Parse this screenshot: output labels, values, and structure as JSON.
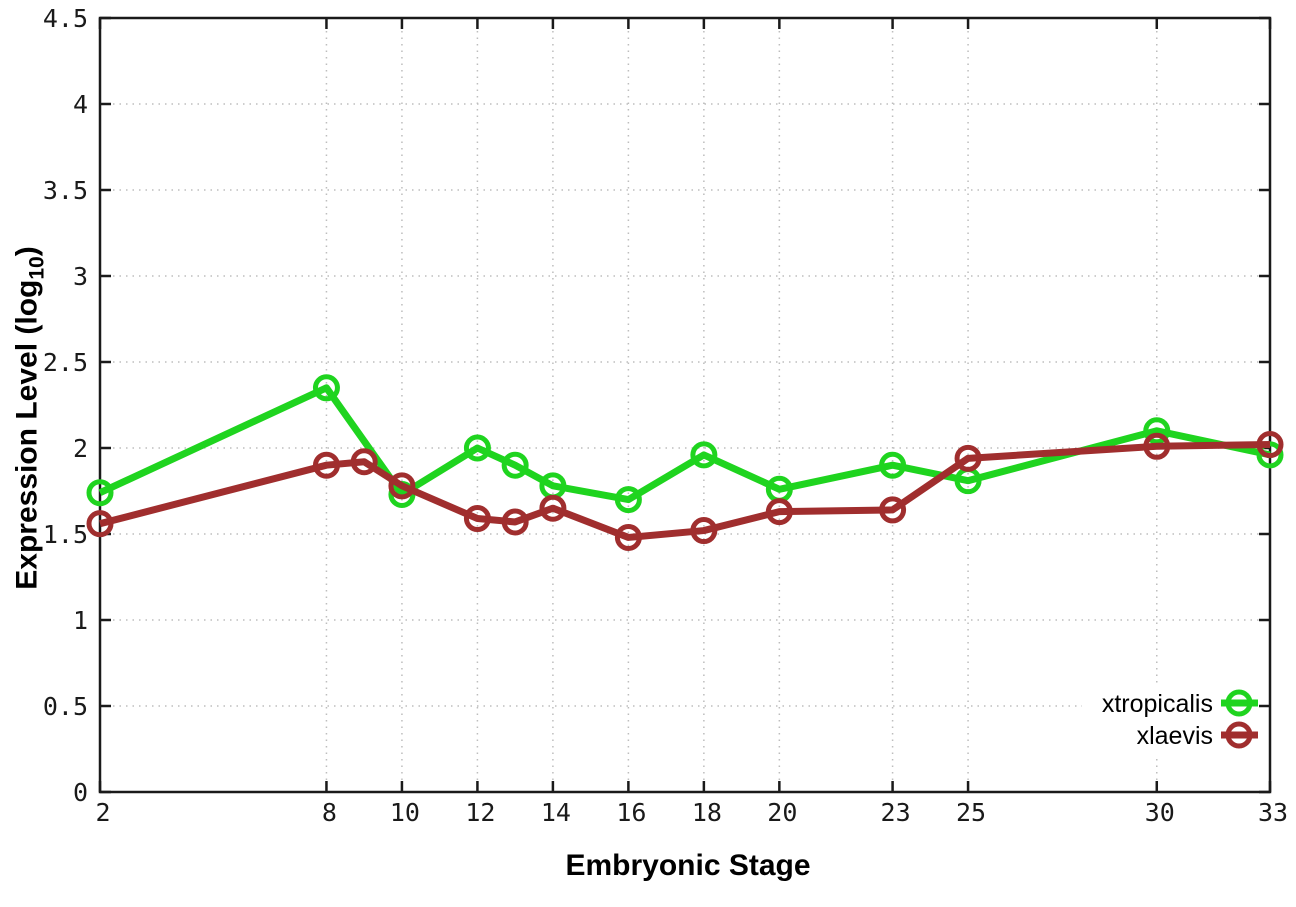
{
  "chart_data": {
    "type": "line",
    "title": "",
    "xlabel": "Embryonic Stage",
    "ylabel": "Expression Level (log10)",
    "ylabel_parts": {
      "main": "Expression Level (log",
      "sub": "10",
      "end": ")"
    },
    "x_ticks": [
      2,
      8,
      10,
      12,
      14,
      16,
      18,
      20,
      23,
      25,
      30,
      33
    ],
    "y_ticks": [
      0,
      0.5,
      1,
      1.5,
      2,
      2.5,
      3,
      3.5,
      4,
      4.5
    ],
    "xlim": [
      2,
      33
    ],
    "ylim": [
      0,
      4.5
    ],
    "grid": true,
    "legend_position": "bottom-right",
    "series": [
      {
        "name": "xtropicalis",
        "color": "#1fd41f",
        "x": [
          2,
          8,
          10,
          12,
          13,
          14,
          16,
          18,
          20,
          23,
          25,
          30,
          33
        ],
        "y": [
          1.74,
          2.35,
          1.73,
          2.0,
          1.9,
          1.78,
          1.7,
          1.96,
          1.76,
          1.9,
          1.81,
          2.1,
          1.96
        ]
      },
      {
        "name": "xlaevis",
        "color": "#a02e2e",
        "x": [
          2,
          8,
          9,
          10,
          12,
          13,
          14,
          16,
          18,
          20,
          23,
          25,
          30,
          33
        ],
        "y": [
          1.56,
          1.9,
          1.92,
          1.78,
          1.59,
          1.57,
          1.65,
          1.48,
          1.52,
          1.63,
          1.64,
          1.94,
          2.01,
          2.02
        ]
      }
    ]
  },
  "style": {
    "grid_color": "#bdbdbd",
    "axis_color": "#1a1a1a",
    "text_color": "#1a1a1a",
    "background": "#ffffff"
  }
}
